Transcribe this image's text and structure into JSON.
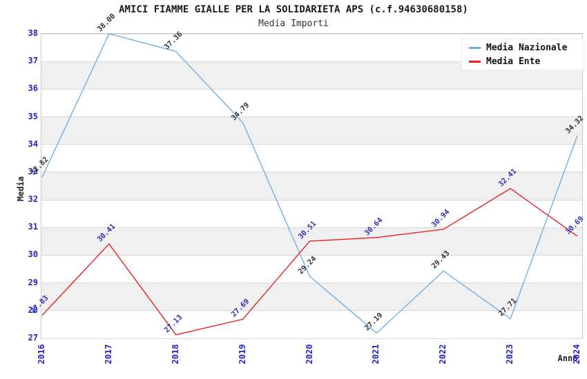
{
  "title": "AMICI FIAMME GIALLE PER LA SOLIDARIETA APS (c.f.94630680158)",
  "subtitle": "Media Importi",
  "axes": {
    "y_title": "Media",
    "x_title": "Anno"
  },
  "legend": [
    {
      "label": "Media Nazionale",
      "color": "#74ade2"
    },
    {
      "label": "Media Ente",
      "color": "#e62222"
    }
  ],
  "chart_data": {
    "type": "line",
    "title": "AMICI FIAMME GIALLE PER LA SOLIDARIETA APS (c.f.94630680158)",
    "subtitle": "Media Importi",
    "xlabel": "Anno",
    "ylabel": "Media",
    "x": [
      2016,
      2017,
      2018,
      2019,
      2020,
      2021,
      2022,
      2023,
      2024
    ],
    "series": [
      {
        "name": "Media Nazionale",
        "color": "#74ade2",
        "label_color": "#333333",
        "values": [
          32.82,
          38.0,
          37.36,
          34.79,
          29.24,
          27.19,
          29.43,
          27.71,
          34.32
        ]
      },
      {
        "name": "Media Ente",
        "color": "#e62222",
        "label_color": "#3030b0",
        "values": [
          27.83,
          30.41,
          27.13,
          27.69,
          30.51,
          30.64,
          30.94,
          32.41,
          30.69
        ]
      }
    ],
    "ylim": [
      27,
      38
    ],
    "ytick_step": 1,
    "grid": true,
    "alternating_bands": true,
    "legend_position": "top-right",
    "tick_label_color": "#2222cc",
    "band_color": "#f0f0f0",
    "gridline_color": "#d9d9d9"
  }
}
